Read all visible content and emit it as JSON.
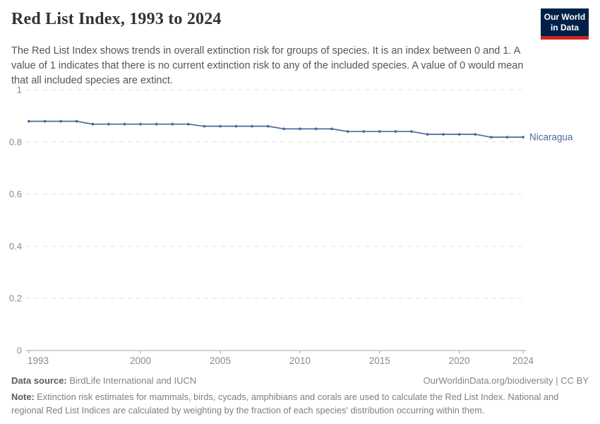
{
  "header": {
    "title": "Red List Index, 1993 to 2024",
    "subtitle": "The Red List Index shows trends in overall extinction risk for groups of species. It is an index between 0 and 1. A value of 1 indicates that there is no current extinction risk to any of the included species. A value of 0 would mean that all included species are extinct.",
    "logo": {
      "line1": "Our World",
      "line2": "in Data"
    }
  },
  "chart_data": {
    "type": "line",
    "title": "Red List Index, 1993 to 2024",
    "x": [
      1993,
      1994,
      1995,
      1996,
      1997,
      1998,
      1999,
      2000,
      2001,
      2002,
      2003,
      2004,
      2005,
      2006,
      2007,
      2008,
      2009,
      2010,
      2011,
      2012,
      2013,
      2014,
      2015,
      2016,
      2017,
      2018,
      2019,
      2020,
      2021,
      2022,
      2023,
      2024
    ],
    "series": [
      {
        "name": "Nicaragua",
        "color": "#4C6A9C",
        "values": [
          0.879,
          0.879,
          0.879,
          0.879,
          0.868,
          0.868,
          0.868,
          0.868,
          0.868,
          0.868,
          0.868,
          0.86,
          0.86,
          0.86,
          0.86,
          0.86,
          0.85,
          0.85,
          0.85,
          0.85,
          0.84,
          0.84,
          0.84,
          0.84,
          0.84,
          0.829,
          0.829,
          0.829,
          0.829,
          0.818,
          0.818,
          0.818
        ]
      }
    ],
    "xlabel": "",
    "ylabel": "",
    "ylim": [
      0,
      1
    ],
    "yticks": [
      0,
      0.2,
      0.4,
      0.6,
      0.8,
      1
    ],
    "ytick_labels": [
      "0",
      "0.2",
      "0.4",
      "0.6",
      "0.8",
      "1"
    ],
    "xticks": [
      1993,
      2000,
      2005,
      2010,
      2015,
      2020,
      2024
    ],
    "grid": "horizontal-dashed",
    "legend_position": "end-of-line-label"
  },
  "footer": {
    "source_label": "Data source:",
    "source_text": " BirdLife International and IUCN",
    "rights": "OurWorldinData.org/biodiversity | CC BY",
    "note_label": "Note:",
    "note_text": " Extinction risk estimates for mammals, birds, cycads, amphibians and corals are used to calculate the Red List Index. National and regional Red List Indices are calculated by weighting by the fraction of each species' distribution occurring within them."
  },
  "colors": {
    "line": "#4C6A9C",
    "entity_label": "#4C6A9C",
    "grid": "#e2e2e2",
    "axis": "#a6a6a6",
    "tick_label": "#8a8a8a",
    "logo_bg": "#002147",
    "logo_accent": "#CE261E"
  }
}
